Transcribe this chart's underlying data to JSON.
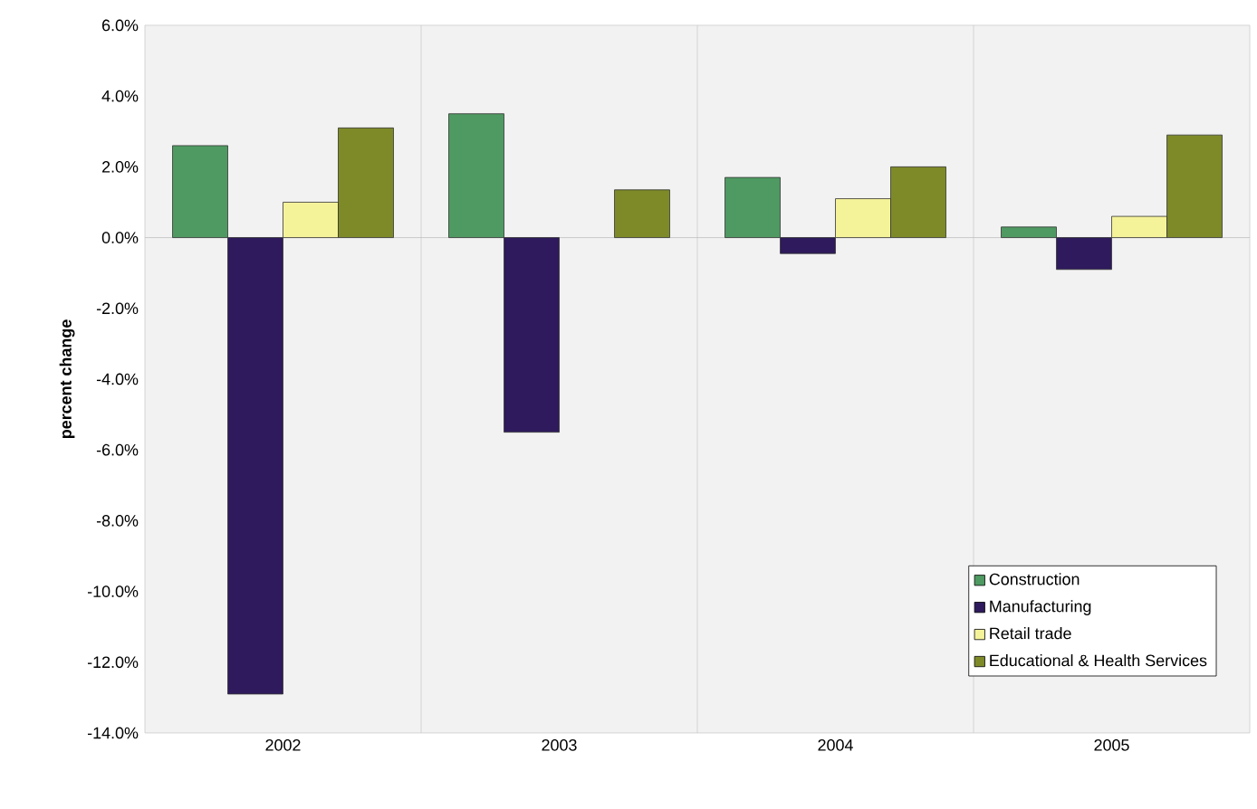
{
  "chart_data": {
    "type": "bar",
    "ylabel": "percent change",
    "categories": [
      "2002",
      "2003",
      "2004",
      "2005"
    ],
    "series": [
      {
        "name": "Construction",
        "color": "#4f9a62",
        "values": [
          2.6,
          3.5,
          1.7,
          0.3
        ]
      },
      {
        "name": "Manufacturing",
        "color": "#2e1a5c",
        "values": [
          -12.9,
          -5.5,
          -0.45,
          -0.9
        ]
      },
      {
        "name": "Retail trade",
        "color": "#f5f39a",
        "values": [
          1.0,
          null,
          1.1,
          0.6
        ]
      },
      {
        "name": "Educational & Health Services",
        "color": "#7e8a28",
        "values": [
          3.1,
          1.35,
          2.0,
          2.9
        ]
      }
    ],
    "ylim": [
      -14,
      6
    ],
    "yticks": [
      {
        "value": -14,
        "label": "-14.0%"
      },
      {
        "value": -12,
        "label": "-12.0%"
      },
      {
        "value": -10,
        "label": "-10.0%"
      },
      {
        "value": -8,
        "label": "-8.0%"
      },
      {
        "value": -6,
        "label": "-6.0%"
      },
      {
        "value": -4,
        "label": "-4.0%"
      },
      {
        "value": -2,
        "label": "-2.0%"
      },
      {
        "value": 0,
        "label": "0.0%"
      },
      {
        "value": 2,
        "label": "2.0%"
      },
      {
        "value": 4,
        "label": "4.0%"
      },
      {
        "value": 6,
        "label": "6.0%"
      }
    ],
    "legend": "bottom right"
  }
}
